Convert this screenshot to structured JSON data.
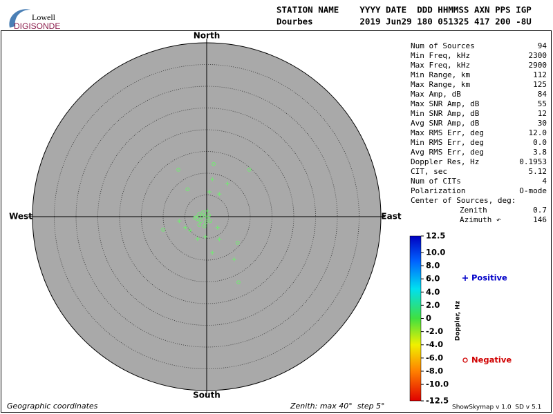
{
  "logo": {
    "top": "Lowell",
    "bottom": "DIGISONDE"
  },
  "header": {
    "lines": [
      "STATION NAME    YYYY DATE  DDD HHMMSS AXN PPS IGP",
      "Dourbes         2019 Jun29 180 051325 417 200 -8U"
    ]
  },
  "stats": {
    "rows": [
      [
        "Num of Sources",
        "94"
      ],
      [
        "Min Freq, kHz",
        "2300"
      ],
      [
        "Max Freq, kHz",
        "2900"
      ],
      [
        "Min Range, km",
        "112"
      ],
      [
        "Max Range, km",
        "125"
      ],
      [
        "Max Amp, dB",
        "84"
      ],
      [
        "Max SNR Amp, dB",
        "55"
      ],
      [
        "Min SNR Amp, dB",
        "12"
      ],
      [
        "Avg SNR Amp, dB",
        "30"
      ],
      [
        "Max RMS Err, deg",
        "12.0"
      ],
      [
        "Min RMS Err, deg",
        "0.0"
      ],
      [
        "Avg RMS Err, deg",
        "3.8"
      ],
      [
        "Doppler Res, Hz",
        "0.1953"
      ],
      [
        "CIT, sec",
        "5.12"
      ],
      [
        "Num of CITs",
        "4"
      ],
      [
        "Polarization",
        "O-mode"
      ],
      [
        "Center of Sources, deg:",
        ""
      ]
    ],
    "sub_rows": [
      [
        "Zenith",
        "0.7"
      ],
      [
        "Azimuth ↶",
        "146"
      ]
    ]
  },
  "footer": {
    "left": "Geographic coordinates",
    "middle": "Zenith: max 40°  step 5°",
    "right": "ShowSkymap v 1.0  SD v 5.1"
  },
  "chart_data": {
    "type": "polar-scatter",
    "directions": {
      "north": "North",
      "south": "South",
      "west": "West",
      "east": "East"
    },
    "xlim": [
      -40,
      40
    ],
    "ylim": [
      -40,
      40
    ],
    "rticks": [
      5,
      10,
      15,
      20,
      25,
      30,
      35
    ],
    "marker_color": "#74e874",
    "series": [
      {
        "name": "Positive",
        "color": "#0000c8",
        "marker": "plus",
        "x": [
          1.3,
          4.8,
          0.6,
          2.9,
          -6.3,
          -4.9,
          -3.8,
          -2.1,
          -0.3,
          2.9,
          1.3,
          6.3,
          2.5,
          -2.4,
          0.2
        ],
        "y": [
          8.6,
          7.6,
          5.7,
          5.2,
          -1.0,
          -2.5,
          -3.2,
          -5.1,
          -4.6,
          -5.2,
          -8.3,
          -9.8,
          -2.5,
          0,
          1.3
        ]
      },
      {
        "name": "Negative",
        "color": "#d00000",
        "marker": "circle",
        "x": [
          -6.5,
          9.8,
          1.6,
          -4.4,
          -10.0,
          7.1,
          7.3,
          -1.7,
          -1.1,
          -0.5,
          0.2,
          -1.4,
          -0.2,
          0.5,
          -2.1,
          -0.8,
          0.8,
          -0.5,
          -1.7,
          -2.7
        ],
        "y": [
          10.8,
          10.8,
          12.1,
          6.3,
          -3.0,
          -6.0,
          -15.1,
          0.6,
          0,
          0.3,
          -0.3,
          -1.0,
          -1.3,
          0.3,
          -0.6,
          1.0,
          -1.0,
          -2.2,
          -1.9,
          -0.3
        ]
      }
    ],
    "colorbar": {
      "label": "Doppler, Hz",
      "lim": [
        -12.5,
        12.5
      ],
      "ticks": [
        12.5,
        {
          "value": 10,
          "label": "10.0"
        },
        {
          "value": 8,
          "label": "8.0"
        },
        {
          "value": 6,
          "label": "6.0"
        },
        {
          "value": 4,
          "label": "4.0"
        },
        {
          "value": 2,
          "label": "2.0"
        },
        0,
        {
          "value": -2,
          "label": "-2.0"
        },
        {
          "value": -4,
          "label": "-4.0"
        },
        {
          "value": -6,
          "label": "-6.0"
        },
        {
          "value": -8,
          "label": "-8.0"
        },
        {
          "value": -10,
          "label": "-10.0"
        },
        -12.5
      ]
    }
  }
}
